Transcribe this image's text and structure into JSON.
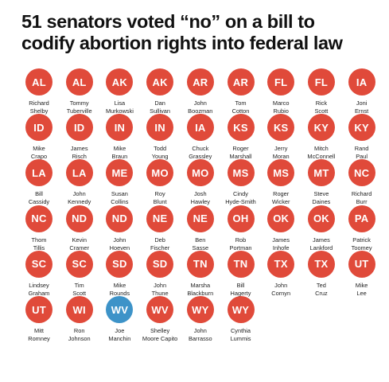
{
  "title": {
    "line1": "51 senators voted “no” on a bill to",
    "line2": "codify abortion rights into federal law"
  },
  "colors": {
    "republican": "#e04a3a",
    "democrat": "#3d93c8",
    "text": "#111111"
  },
  "senators": [
    {
      "state": "AL",
      "first": "Richard",
      "last": "Shelby",
      "party": "R"
    },
    {
      "state": "AL",
      "first": "Tommy",
      "last": "Tuberville",
      "party": "R"
    },
    {
      "state": "AK",
      "first": "Lisa",
      "last": "Murkowski",
      "party": "R"
    },
    {
      "state": "AK",
      "first": "Dan",
      "last": "Sullivan",
      "party": "R"
    },
    {
      "state": "AR",
      "first": "John",
      "last": "Boozman",
      "party": "R"
    },
    {
      "state": "AR",
      "first": "Tom",
      "last": "Cotton",
      "party": "R"
    },
    {
      "state": "FL",
      "first": "Marco",
      "last": "Rubio",
      "party": "R"
    },
    {
      "state": "FL",
      "first": "Rick",
      "last": "Scott",
      "party": "R"
    },
    {
      "state": "IA",
      "first": "Joni",
      "last": "Ernst",
      "party": "R"
    },
    {
      "state": "ID",
      "first": "Mike",
      "last": "Crapo",
      "party": "R"
    },
    {
      "state": "ID",
      "first": "James",
      "last": "Risch",
      "party": "R"
    },
    {
      "state": "IN",
      "first": "Mike",
      "last": "Braun",
      "party": "R"
    },
    {
      "state": "IN",
      "first": "Todd",
      "last": "Young",
      "party": "R"
    },
    {
      "state": "IA",
      "first": "Chuck",
      "last": "Grassley",
      "party": "R"
    },
    {
      "state": "KS",
      "first": "Roger",
      "last": "Marshall",
      "party": "R"
    },
    {
      "state": "KS",
      "first": "Jerry",
      "last": "Moran",
      "party": "R"
    },
    {
      "state": "KY",
      "first": "Mitch",
      "last": "McConnell",
      "party": "R"
    },
    {
      "state": "KY",
      "first": "Rand",
      "last": "Paul",
      "party": "R"
    },
    {
      "state": "LA",
      "first": "Bill",
      "last": "Cassidy",
      "party": "R"
    },
    {
      "state": "LA",
      "first": "John",
      "last": "Kennedy",
      "party": "R"
    },
    {
      "state": "ME",
      "first": "Susan",
      "last": "Collins",
      "party": "R"
    },
    {
      "state": "MO",
      "first": "Roy",
      "last": "Blunt",
      "party": "R"
    },
    {
      "state": "MO",
      "first": "Josh",
      "last": "Hawley",
      "party": "R"
    },
    {
      "state": "MS",
      "first": "Cindy",
      "last": "Hyde-Smith",
      "party": "R"
    },
    {
      "state": "MS",
      "first": "Roger",
      "last": "Wicker",
      "party": "R"
    },
    {
      "state": "MT",
      "first": "Steve",
      "last": "Daines",
      "party": "R"
    },
    {
      "state": "NC",
      "first": "Richard",
      "last": "Burr",
      "party": "R"
    },
    {
      "state": "NC",
      "first": "Thom",
      "last": "Tillis",
      "party": "R"
    },
    {
      "state": "ND",
      "first": "Kevin",
      "last": "Cramer",
      "party": "R"
    },
    {
      "state": "ND",
      "first": "John",
      "last": "Hoeven",
      "party": "R"
    },
    {
      "state": "NE",
      "first": "Deb",
      "last": "Fischer",
      "party": "R"
    },
    {
      "state": "NE",
      "first": "Ben",
      "last": "Sasse",
      "party": "R"
    },
    {
      "state": "OH",
      "first": "Rob",
      "last": "Portman",
      "party": "R"
    },
    {
      "state": "OK",
      "first": "James",
      "last": "Inhofe",
      "party": "R"
    },
    {
      "state": "OK",
      "first": "James",
      "last": "Lankford",
      "party": "R"
    },
    {
      "state": "PA",
      "first": "Patrick",
      "last": "Toomey",
      "party": "R"
    },
    {
      "state": "SC",
      "first": "Lindsey",
      "last": "Graham",
      "party": "R"
    },
    {
      "state": "SC",
      "first": "Tim",
      "last": "Scott",
      "party": "R"
    },
    {
      "state": "SD",
      "first": "Mike",
      "last": "Rounds",
      "party": "R"
    },
    {
      "state": "SD",
      "first": "John",
      "last": "Thune",
      "party": "R"
    },
    {
      "state": "TN",
      "first": "Marsha",
      "last": "Blackburn",
      "party": "R"
    },
    {
      "state": "TN",
      "first": "Bill",
      "last": "Hagerty",
      "party": "R"
    },
    {
      "state": "TX",
      "first": "John",
      "last": "Cornyn",
      "party": "R"
    },
    {
      "state": "TX",
      "first": "Ted",
      "last": "Cruz",
      "party": "R"
    },
    {
      "state": "UT",
      "first": "Mike",
      "last": "Lee",
      "party": "R"
    },
    {
      "state": "UT",
      "first": "Mitt",
      "last": "Romney",
      "party": "R"
    },
    {
      "state": "WI",
      "first": "Ron",
      "last": "Johnson",
      "party": "R"
    },
    {
      "state": "WV",
      "first": "Joe",
      "last": "Manchin",
      "party": "D"
    },
    {
      "state": "WV",
      "first": "Shelley",
      "last": "Moore Capito",
      "party": "R"
    },
    {
      "state": "WY",
      "first": "John",
      "last": "Barrasso",
      "party": "R"
    },
    {
      "state": "WY",
      "first": "Cynthia",
      "last": "Lummis",
      "party": "R"
    }
  ]
}
